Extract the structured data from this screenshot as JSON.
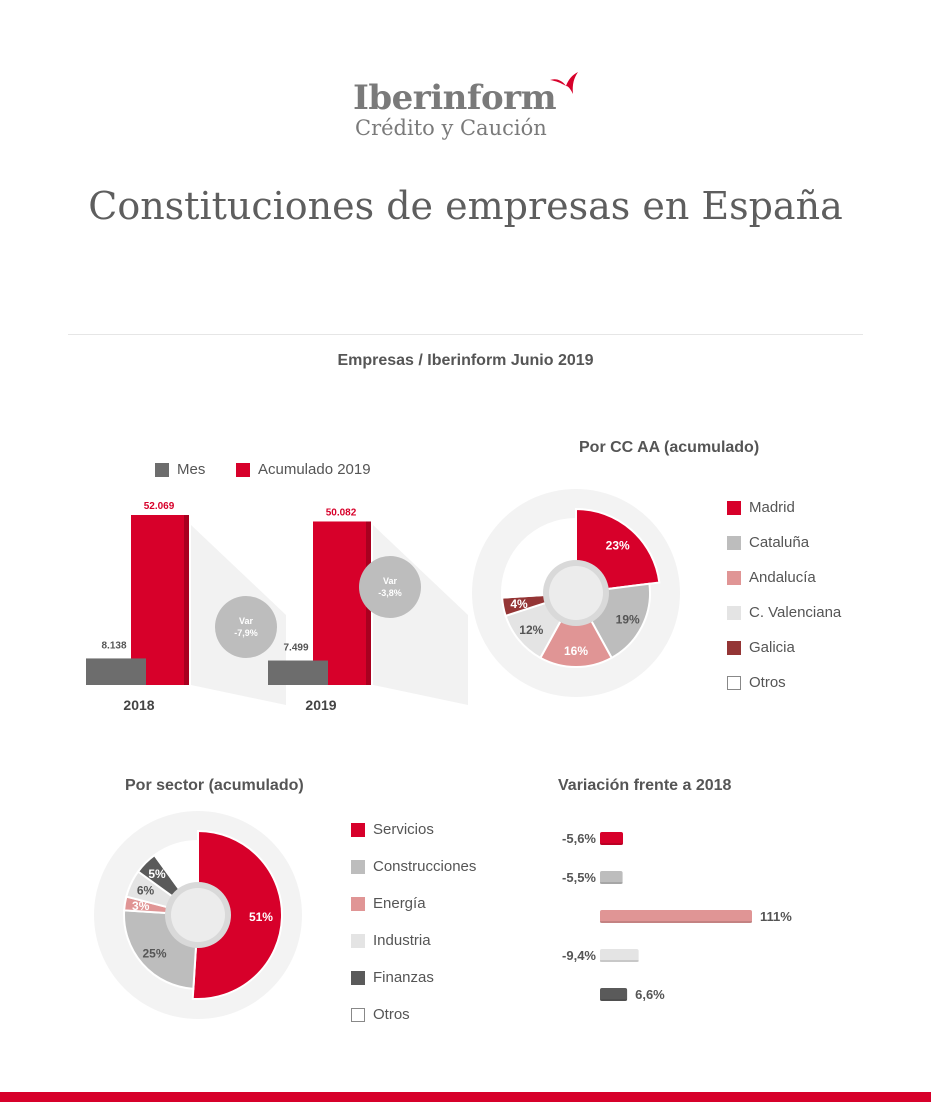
{
  "brand": {
    "name": "Iberinform",
    "tagline": "Crédito y Caución"
  },
  "title": "Constituciones de empresas en España",
  "subtitle": "Empresas / Iberinform Junio 2019",
  "colors": {
    "red": "#d7002a",
    "dark_gray": "#6d6d6d",
    "mid_gray": "#bdbdbd",
    "pink": "#e09595",
    "light_gray": "#e4e4e4",
    "dark_red": "#943535",
    "bubble_gray": "#bdbdbd"
  },
  "chart_data": [
    {
      "type": "bar",
      "categories": [
        "2018",
        "2019"
      ],
      "series": [
        {
          "name": "Mes",
          "values": [
            8138,
            7499
          ],
          "labels": [
            "8.138",
            "7.499"
          ],
          "color": "#6d6d6d"
        },
        {
          "name": "Acumulado 2019",
          "values": [
            52069,
            50082
          ],
          "labels": [
            "52.069",
            "50.082"
          ],
          "color": "#d7002a"
        }
      ],
      "annotations": [
        {
          "title": "Var",
          "value": "-7,9%"
        },
        {
          "title": "Var",
          "value": "-3,8%"
        }
      ],
      "legend": "top"
    },
    {
      "type": "pie",
      "title": "Por CC AA (acumulado)",
      "labels": [
        "Madrid",
        "Cataluña",
        "Andalucía",
        "C. Valenciana",
        "Galicia",
        "Otros"
      ],
      "values": [
        23,
        19,
        16,
        12,
        4,
        26
      ],
      "value_labels": [
        "23%",
        "19%",
        "16%",
        "12%",
        "4%",
        ""
      ],
      "colors": [
        "#d7002a",
        "#bdbdbd",
        "#e09595",
        "#e4e4e4",
        "#943535",
        "#ffffff"
      ],
      "legend": "right"
    },
    {
      "type": "pie",
      "title": "Por sector (acumulado)",
      "labels": [
        "Servicios",
        "Construcciones",
        "Energía",
        "Industria",
        "Finanzas",
        "Otros"
      ],
      "values": [
        51,
        25,
        3,
        6,
        5,
        10
      ],
      "value_labels": [
        "51%",
        "25%",
        "3%",
        "6%",
        "5%",
        ""
      ],
      "colors": [
        "#d7002a",
        "#bdbdbd",
        "#e09595",
        "#e4e4e4",
        "#5a5a5a",
        "#ffffff"
      ],
      "legend": "right"
    },
    {
      "type": "bar",
      "orientation": "horizontal",
      "title": "Variación frente a 2018",
      "values": [
        -5.6,
        -5.5,
        111,
        -9.4,
        6.6
      ],
      "labels": [
        "-5,6%",
        "-5,5%",
        "111%",
        "-9,4%",
        "6,6%"
      ],
      "colors": [
        "#d7002a",
        "#bdbdbd",
        "#e09595",
        "#e4e4e4",
        "#5a5a5a"
      ]
    }
  ]
}
